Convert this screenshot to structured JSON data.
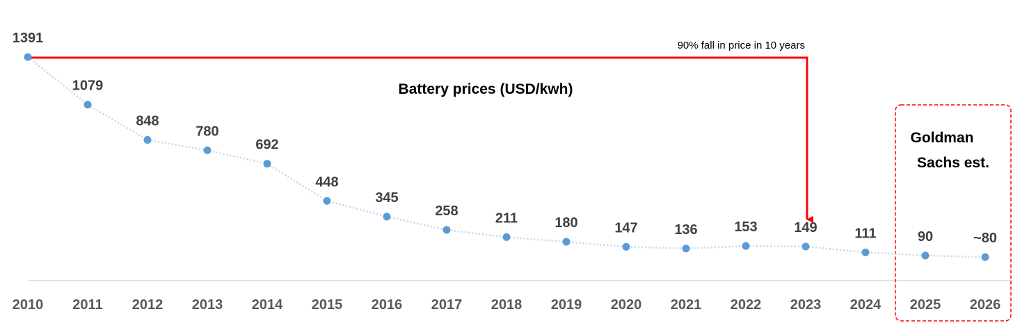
{
  "chart_data": {
    "type": "line",
    "title": "Battery prices (USD/kwh)",
    "categories": [
      "2010",
      "2011",
      "2012",
      "2013",
      "2014",
      "2015",
      "2016",
      "2017",
      "2018",
      "2019",
      "2020",
      "2021",
      "2022",
      "2023",
      "2024",
      "2025",
      "2026"
    ],
    "values": [
      1391,
      1079,
      848,
      780,
      692,
      448,
      345,
      258,
      211,
      180,
      147,
      136,
      153,
      149,
      111,
      90,
      80
    ],
    "value_labels": [
      "1391",
      "1079",
      "848",
      "780",
      "692",
      "448",
      "345",
      "258",
      "211",
      "180",
      "147",
      "136",
      "153",
      "149",
      "111",
      "90",
      "~80"
    ],
    "annotation": "90% fall in price in 10 years",
    "estimate_label_line1": "Goldman",
    "estimate_label_line2": "Sachs est.",
    "estimate_from": "2025",
    "line_color": "#bdd7ee",
    "marker_color": "#5b9bd5",
    "arrow_color": "#ff0000",
    "estimate_box_color": "#ff0000",
    "grid": false,
    "legend": "none"
  }
}
